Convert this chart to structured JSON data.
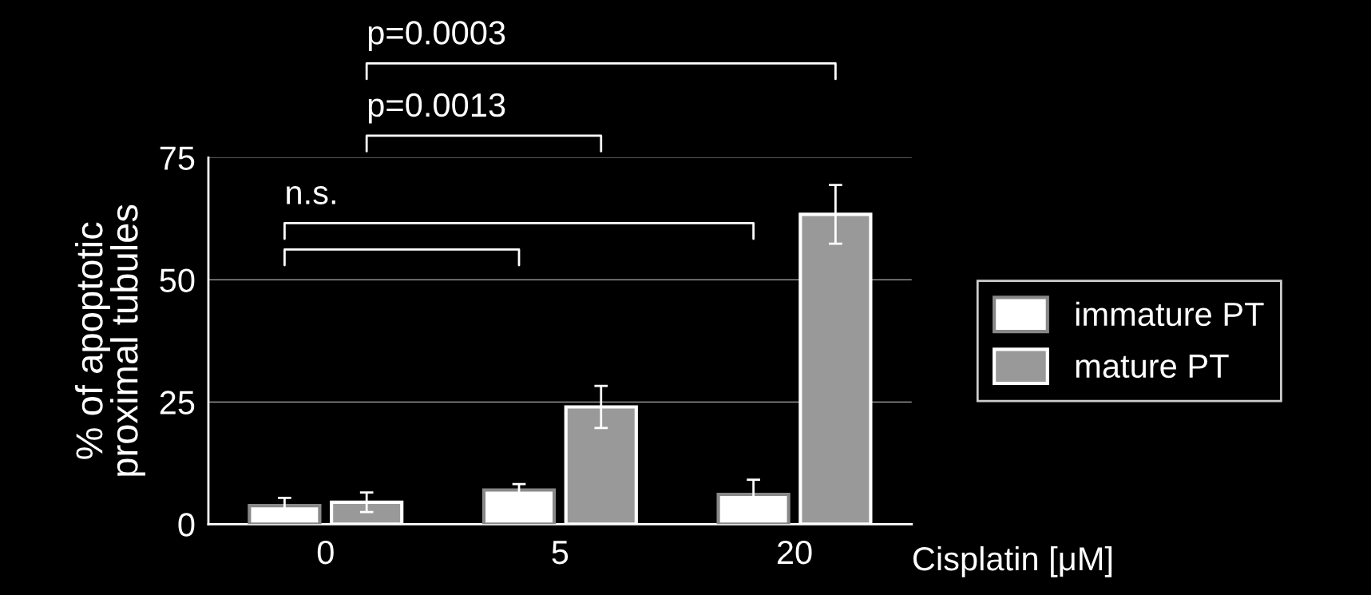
{
  "chart_data": {
    "type": "bar",
    "xlabel": "Cisplatin [μM]",
    "ylabel": "% of apoptotic\nproximal tubules",
    "categories": [
      "0",
      "5",
      "20"
    ],
    "series": [
      {
        "name": "immature PT",
        "color": "#ffffff",
        "values": [
          3.8,
          7.0,
          6.1
        ],
        "errors": [
          1.6,
          1.2,
          3.0
        ]
      },
      {
        "name": "mature PT",
        "color": "#999999",
        "values": [
          4.5,
          24.0,
          63.4
        ],
        "errors": [
          2.0,
          4.3,
          6.0
        ]
      }
    ],
    "ylim": [
      0,
      75
    ],
    "yticks": [
      0,
      25,
      50,
      75
    ],
    "grid": "y",
    "legend": "right",
    "annotations": [
      "n.s.",
      "p=0.0013",
      "p=0.0003"
    ]
  }
}
